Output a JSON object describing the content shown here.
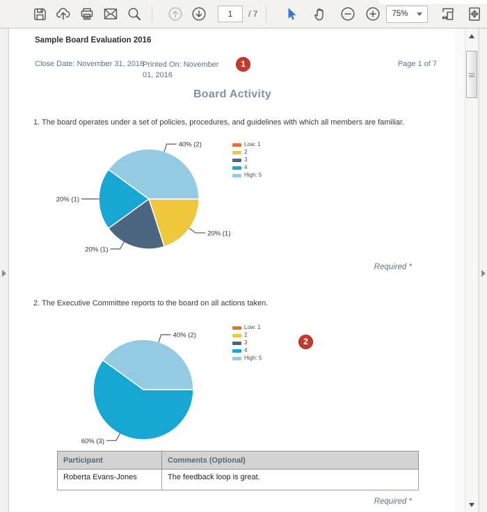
{
  "toolbar": {
    "page_value": "1",
    "page_total": "/ 7",
    "zoom_value": "75%"
  },
  "document": {
    "report_title": "Sample Board Evaluation 2016",
    "close_date": "Close Date: November 31, 2016",
    "printed_on": "Printed On: November 01, 2016",
    "page_indicator": "Page 1 of 7",
    "section_title": "Board Activity",
    "required_note": "Required *",
    "questions": [
      "1. The board operates under a set of policies, procedures, and guidelines with which all members are familiar.",
      "2. The Executive Committee reports to the board on all actions taken."
    ]
  },
  "annotations": {
    "badge1": "1",
    "badge2": "2"
  },
  "colors": {
    "rating1": "#e0713a",
    "rating2": "#eec73d",
    "rating3": "#4b6681",
    "rating4": "#18a6d2",
    "rating5": "#94cbe2",
    "badge_red": "#c33b2b",
    "heading_blue_gray": "#8093a0",
    "slate_text": "#5f7482"
  },
  "chart_data": [
    {
      "type": "pie",
      "title": "Responses to question 1",
      "start_angle": 0,
      "legend_position": "right",
      "slices": [
        {
          "label": "2",
          "value": 20,
          "count": 1,
          "callout": "20% (1)",
          "color": "#eec73d",
          "callout_angle": 36
        },
        {
          "label": "3",
          "value": 20,
          "count": 1,
          "callout": "20% (1)",
          "color": "#4b6681",
          "callout_angle": 120
        },
        {
          "label": "4",
          "value": 20,
          "count": 1,
          "callout": "20% (1)",
          "color": "#18a6d2",
          "callout_angle": 180
        },
        {
          "label": "High: 5",
          "value": 40,
          "count": 2,
          "callout": "40% (2)",
          "color": "#94cbe2",
          "callout_angle": 288
        }
      ],
      "legend": [
        {
          "label": "Low: 1",
          "color": "#e0713a"
        },
        {
          "label": "2",
          "color": "#eec73d"
        },
        {
          "label": "3",
          "color": "#4b6681"
        },
        {
          "label": "4",
          "color": "#18a6d2"
        },
        {
          "label": "High: 5",
          "color": "#94cbe2"
        }
      ]
    },
    {
      "type": "pie",
      "title": "Responses to question 2",
      "start_angle": 0,
      "legend_position": "right",
      "slices": [
        {
          "label": "4",
          "value": 60,
          "count": 3,
          "callout": "60% (3)",
          "color": "#18a6d2",
          "callout_angle": 118
        },
        {
          "label": "High: 5",
          "value": 40,
          "count": 2,
          "callout": "40% (2)",
          "color": "#94cbe2",
          "callout_angle": 288
        }
      ],
      "legend": [
        {
          "label": "Low: 1",
          "color": "#e0713a"
        },
        {
          "label": "2",
          "color": "#eec73d"
        },
        {
          "label": "3",
          "color": "#4b6681"
        },
        {
          "label": "4",
          "color": "#18a6d2"
        },
        {
          "label": "High: 5",
          "color": "#94cbe2"
        }
      ]
    }
  ],
  "table": {
    "headers": [
      "Participant",
      "Comments (Optional)"
    ],
    "rows": [
      [
        "Roberta Evans-Jones",
        "The feedback loop is great."
      ]
    ]
  }
}
